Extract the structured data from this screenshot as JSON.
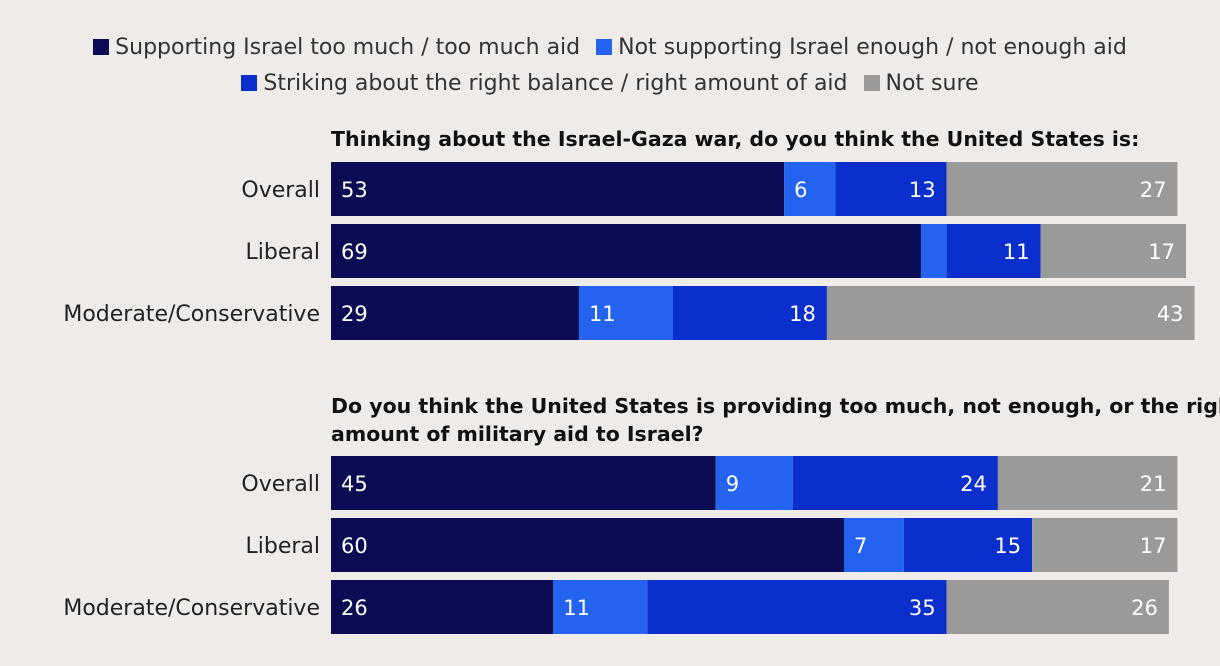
{
  "chart_data": {
    "type": "bar",
    "orientation": "horizontal",
    "stacked": true,
    "legend": [
      {
        "name": "Supporting Israel too much / too much aid",
        "color": "#0c0c54"
      },
      {
        "name": "Not supporting Israel enough / not enough aid",
        "color": "#2363f0"
      },
      {
        "name": "Striking about the right balance / right amount of aid",
        "color": "#0a2fcc"
      },
      {
        "name": "Not sure",
        "color": "#9a9a9a"
      }
    ],
    "panels": [
      {
        "title": "Thinking about the Israel-Gaza war, do you think the United States is:",
        "categories": [
          "Overall",
          "Liberal",
          "Moderate/Conservative"
        ],
        "series": [
          {
            "name": "Supporting Israel too much / too much aid",
            "values": [
              53,
              69,
              29
            ],
            "labels": [
              "53",
              "69",
              "29"
            ]
          },
          {
            "name": "Not supporting Israel enough / not enough aid",
            "values": [
              6,
              3,
              11
            ],
            "labels": [
              "6",
              "",
              "11"
            ]
          },
          {
            "name": "Striking about the right balance / right amount of aid",
            "values": [
              13,
              11,
              18
            ],
            "labels": [
              "13",
              "11",
              "18"
            ]
          },
          {
            "name": "Not sure",
            "values": [
              27,
              17,
              43
            ],
            "labels": [
              "27",
              "17",
              "43"
            ]
          }
        ]
      },
      {
        "title": "Do you think the United States is providing too much, not enough, or the right amount of military aid to Israel?",
        "categories": [
          "Overall",
          "Liberal",
          "Moderate/Conservative"
        ],
        "series": [
          {
            "name": "Supporting Israel too much / too much aid",
            "values": [
              45,
              60,
              26
            ],
            "labels": [
              "45",
              "60",
              "26"
            ]
          },
          {
            "name": "Not supporting Israel enough / not enough aid",
            "values": [
              9,
              7,
              11
            ],
            "labels": [
              "9",
              "7",
              "11"
            ]
          },
          {
            "name": "Striking about the right balance / right amount of aid",
            "values": [
              24,
              15,
              35
            ],
            "labels": [
              "24",
              "15",
              "35"
            ]
          },
          {
            "name": "Not sure",
            "values": [
              21,
              17,
              26
            ],
            "labels": [
              "21",
              "17",
              "26"
            ]
          }
        ]
      }
    ]
  }
}
